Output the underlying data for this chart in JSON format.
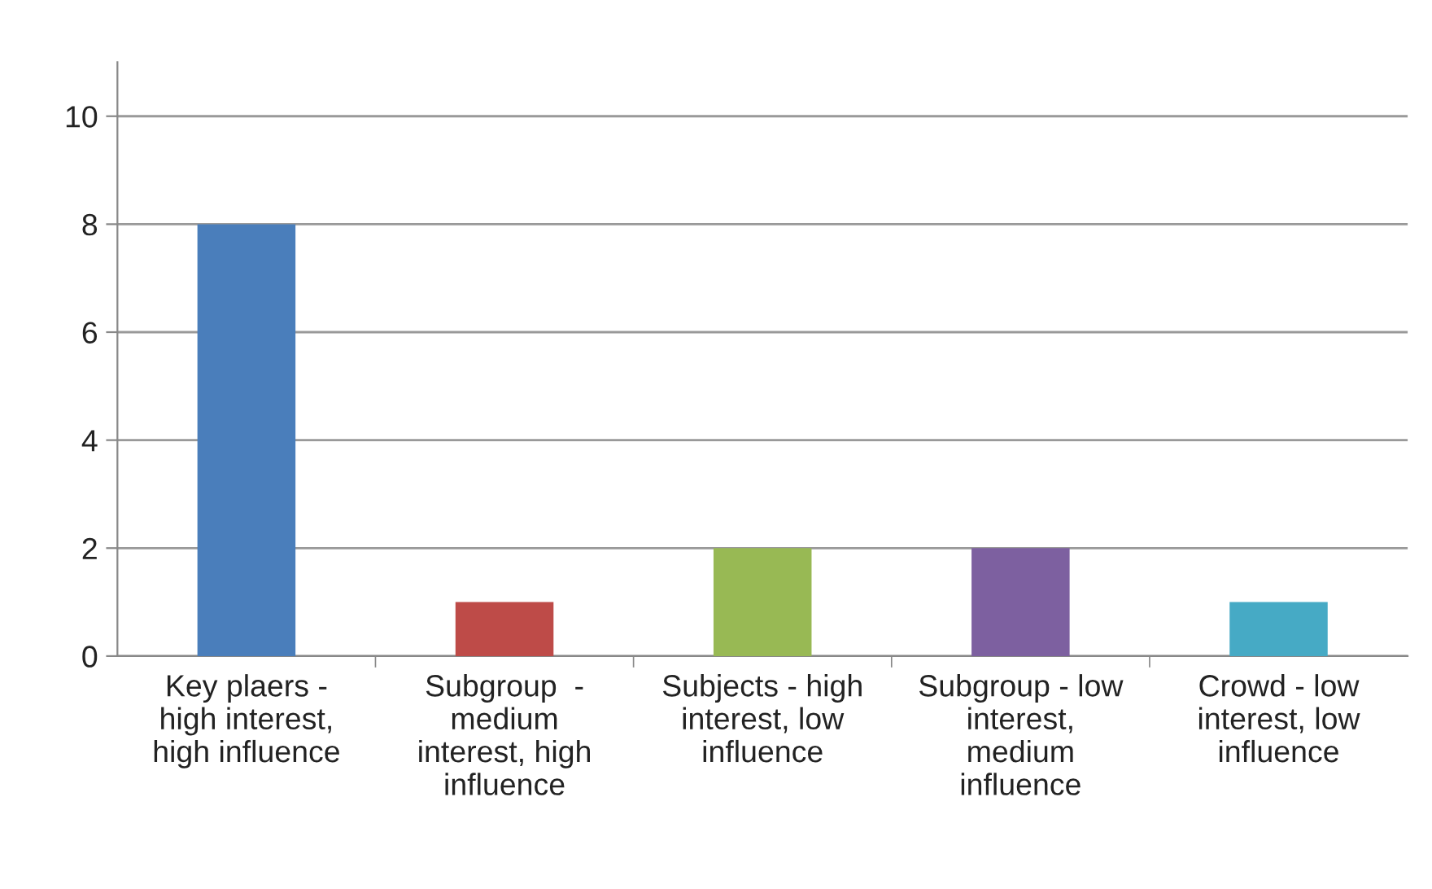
{
  "chart_data": {
    "type": "bar",
    "categories": [
      "Key plaers -\nhigh interest,\nhigh influence",
      "Subgroup  -\nmedium\ninterest, high\ninfluence",
      "Subjects - high\ninterest, low\ninfluence",
      "Subgroup - low\ninterest,\nmedium\ninfluence",
      "Crowd - low\ninterest, low\ninfluence"
    ],
    "values": [
      8,
      1,
      2,
      2,
      1
    ],
    "colors": [
      "#4a7ebb",
      "#be4b48",
      "#98b954",
      "#7d60a0",
      "#46aac5"
    ],
    "ylim": [
      0,
      11
    ],
    "yticks": [
      0,
      2,
      4,
      6,
      8,
      10
    ],
    "grid": "y",
    "legend": false
  }
}
